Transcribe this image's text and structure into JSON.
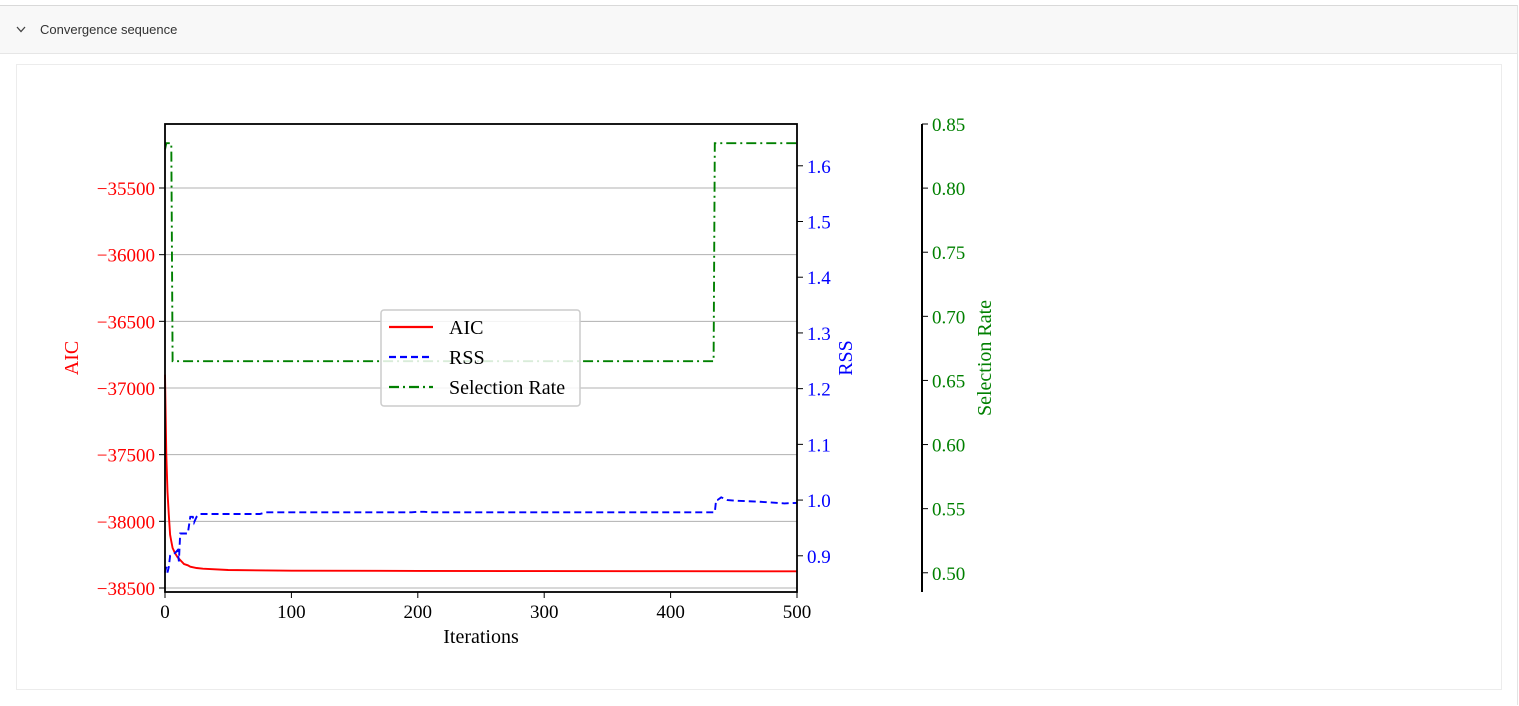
{
  "panel": {
    "title": "Convergence sequence",
    "toggle_icon": "chevron-down-icon"
  },
  "chart_data": {
    "type": "line",
    "xlabel": "Iterations",
    "ylabel_left": "AIC",
    "ylabel_right": "RSS",
    "ylabel_far_right": "Selection Rate",
    "grid": true,
    "legend_position": "center",
    "xlim": [
      0,
      500
    ],
    "x_ticks": [
      "0",
      "100",
      "200",
      "300",
      "400",
      "500"
    ],
    "axes": {
      "aic": {
        "ylim": [
          -38530,
          -35020
        ],
        "ticks": [
          "−35500",
          "−36000",
          "−36500",
          "−37000",
          "−37500",
          "−38000",
          "−38500"
        ],
        "tick_values": [
          -35500,
          -36000,
          -36500,
          -37000,
          -37500,
          -38000,
          -38500
        ],
        "color": "#ff0000"
      },
      "rss": {
        "ylim": [
          0.835,
          1.675
        ],
        "ticks": [
          "0.9",
          "1.0",
          "1.1",
          "1.2",
          "1.3",
          "1.4",
          "1.5",
          "1.6"
        ],
        "tick_values": [
          0.9,
          1.0,
          1.1,
          1.2,
          1.3,
          1.4,
          1.5,
          1.6
        ],
        "color": "#0000ff"
      },
      "selection_rate": {
        "ylim": [
          0.485,
          0.85
        ],
        "ticks": [
          "0.50",
          "0.55",
          "0.60",
          "0.65",
          "0.70",
          "0.75",
          "0.80",
          "0.85"
        ],
        "tick_values": [
          0.5,
          0.55,
          0.6,
          0.65,
          0.7,
          0.75,
          0.8,
          0.85
        ],
        "color": "#008000"
      }
    },
    "series": [
      {
        "name": "AIC",
        "axis": "aic",
        "color": "#ff0000",
        "dash": "solid",
        "x": [
          0,
          1,
          2,
          3,
          4,
          5,
          6,
          8,
          10,
          12,
          15,
          18,
          20,
          25,
          30,
          50,
          100,
          200,
          300,
          400,
          500
        ],
        "y": [
          -36900,
          -37500,
          -37780,
          -37950,
          -38100,
          -38150,
          -38200,
          -38240,
          -38270,
          -38290,
          -38320,
          -38330,
          -38340,
          -38350,
          -38355,
          -38365,
          -38370,
          -38372,
          -38373,
          -38374,
          -38375
        ]
      },
      {
        "name": "RSS",
        "axis": "rss",
        "color": "#0000ff",
        "dash": "dashed",
        "x": [
          0,
          1,
          2,
          3,
          4,
          5,
          8,
          10,
          11,
          12,
          15,
          18,
          20,
          22,
          23,
          25,
          28,
          30,
          75,
          80,
          195,
          200,
          205,
          210,
          230,
          435,
          436,
          437,
          440,
          445,
          450,
          470,
          490,
          500
        ],
        "y": [
          0.87,
          0.88,
          0.87,
          0.88,
          0.9,
          0.9,
          0.905,
          0.91,
          0.89,
          0.94,
          0.94,
          0.94,
          0.97,
          0.97,
          0.96,
          0.97,
          0.975,
          0.975,
          0.975,
          0.978,
          0.978,
          0.979,
          0.979,
          0.978,
          0.978,
          0.978,
          1.0,
          1.0,
          1.005,
          1.0,
          0.999,
          0.997,
          0.994,
          0.995
        ]
      },
      {
        "name": "Selection Rate",
        "axis": "selection_rate",
        "color": "#008000",
        "dash": "dashdot",
        "x": [
          0,
          1,
          2,
          3,
          4,
          5,
          6,
          7,
          8,
          9,
          10,
          11,
          12,
          13,
          14,
          15,
          16,
          17,
          18,
          19,
          20,
          21,
          53,
          54,
          55,
          56,
          60,
          100,
          200,
          300,
          400,
          434,
          435,
          436,
          437,
          440,
          500
        ],
        "y": [
          0.83,
          0.835,
          0.835,
          0.835,
          0.835,
          0.835,
          0.665,
          0.665,
          0.665,
          0.665,
          0.665,
          0.665,
          0.665,
          0.665,
          0.665,
          0.665,
          0.665,
          0.665,
          0.665,
          0.665,
          0.665,
          0.665,
          0.665,
          0.665,
          0.665,
          0.665,
          0.665,
          0.665,
          0.665,
          0.665,
          0.665,
          0.665,
          0.835,
          0.835,
          0.835,
          0.835,
          0.835
        ]
      }
    ]
  }
}
